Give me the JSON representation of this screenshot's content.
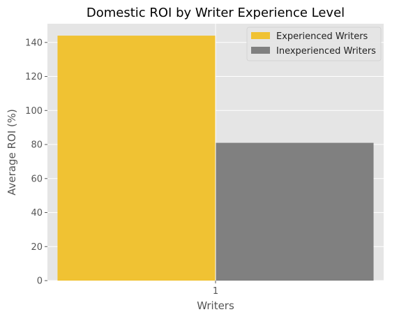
{
  "chart_data": {
    "type": "bar",
    "title": "Domestic ROI by Writer Experience Level",
    "xlabel": "Writers",
    "ylabel": "Average ROI (%)",
    "categories": [
      "1"
    ],
    "series": [
      {
        "name": "Experienced Writers",
        "values": [
          144
        ],
        "color": "#f0c233"
      },
      {
        "name": "Inexperienced Writers",
        "values": [
          81
        ],
        "color": "#808080"
      }
    ],
    "ylim": [
      0,
      151
    ],
    "yticks": [
      0,
      20,
      40,
      60,
      80,
      100,
      120,
      140
    ],
    "grid": true,
    "legend_position": "top-right",
    "background": "#e5e5e5"
  }
}
